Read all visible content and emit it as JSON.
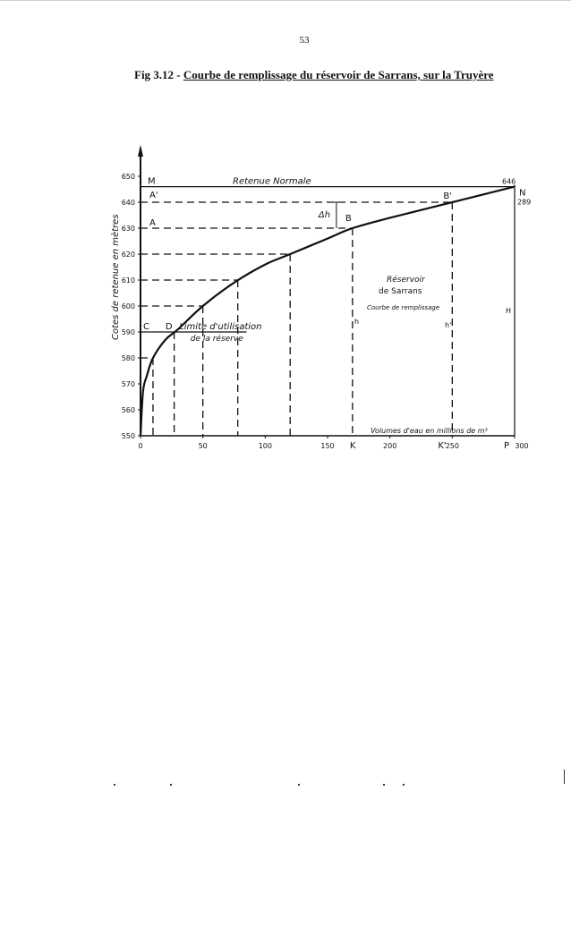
{
  "page": {
    "number": "53"
  },
  "figure": {
    "title_prefix": "Fig 3.12 - ",
    "title_main": "Courbe de remplissage du réservoir de Sarrans, sur la Truyère"
  },
  "chart_data": {
    "type": "line",
    "x": [
      0,
      2,
      5,
      10,
      20,
      30,
      50,
      75,
      100,
      120,
      150,
      170,
      200,
      250,
      300
    ],
    "y": [
      550,
      567,
      573,
      580,
      587,
      591,
      600,
      609,
      616,
      620,
      626,
      630,
      634,
      640,
      646
    ],
    "xlabel": "Volumes d'eau en millions de m³",
    "ylabel": "Cotes de retenue en mètres",
    "xlim": [
      0,
      300
    ],
    "ylim": [
      550,
      650
    ],
    "x_ticks": [
      "0",
      "50",
      "100",
      "150",
      "200",
      "250",
      "300"
    ],
    "y_ticks": [
      "550",
      "560",
      "570",
      "580",
      "590",
      "600",
      "610",
      "620",
      "630",
      "640",
      "650"
    ],
    "grid": false,
    "retenue_normale": {
      "label": "Retenue Normale",
      "level": 646,
      "level_label": "646",
      "volume": 289,
      "volume_label": "289"
    },
    "limite": {
      "label_line1": "Limite d'utilisation",
      "label_line2": "de la réserve",
      "level": 590
    },
    "curve_label": {
      "line1": "Réservoir",
      "line2": "de Sarrans",
      "line3": "Courbe de remplissage"
    },
    "dashed_guides": [
      {
        "y": 580,
        "x": 10
      },
      {
        "y": 590,
        "x": 27
      },
      {
        "y": 600,
        "x": 50
      },
      {
        "y": 610,
        "x": 78
      },
      {
        "y": 620,
        "x": 120
      },
      {
        "y": 630,
        "x": 170
      },
      {
        "y": 640,
        "x": 250
      }
    ],
    "points": {
      "M": "M",
      "N": "N",
      "A_prime": "A'",
      "B_prime": "B'",
      "A": "A",
      "B": "B",
      "C": "C",
      "D": "D",
      "K": "K",
      "K_prime": "K'",
      "P": "P",
      "h": "h",
      "h_prime": "h'",
      "H": "H",
      "delta_h": "Δh"
    }
  }
}
